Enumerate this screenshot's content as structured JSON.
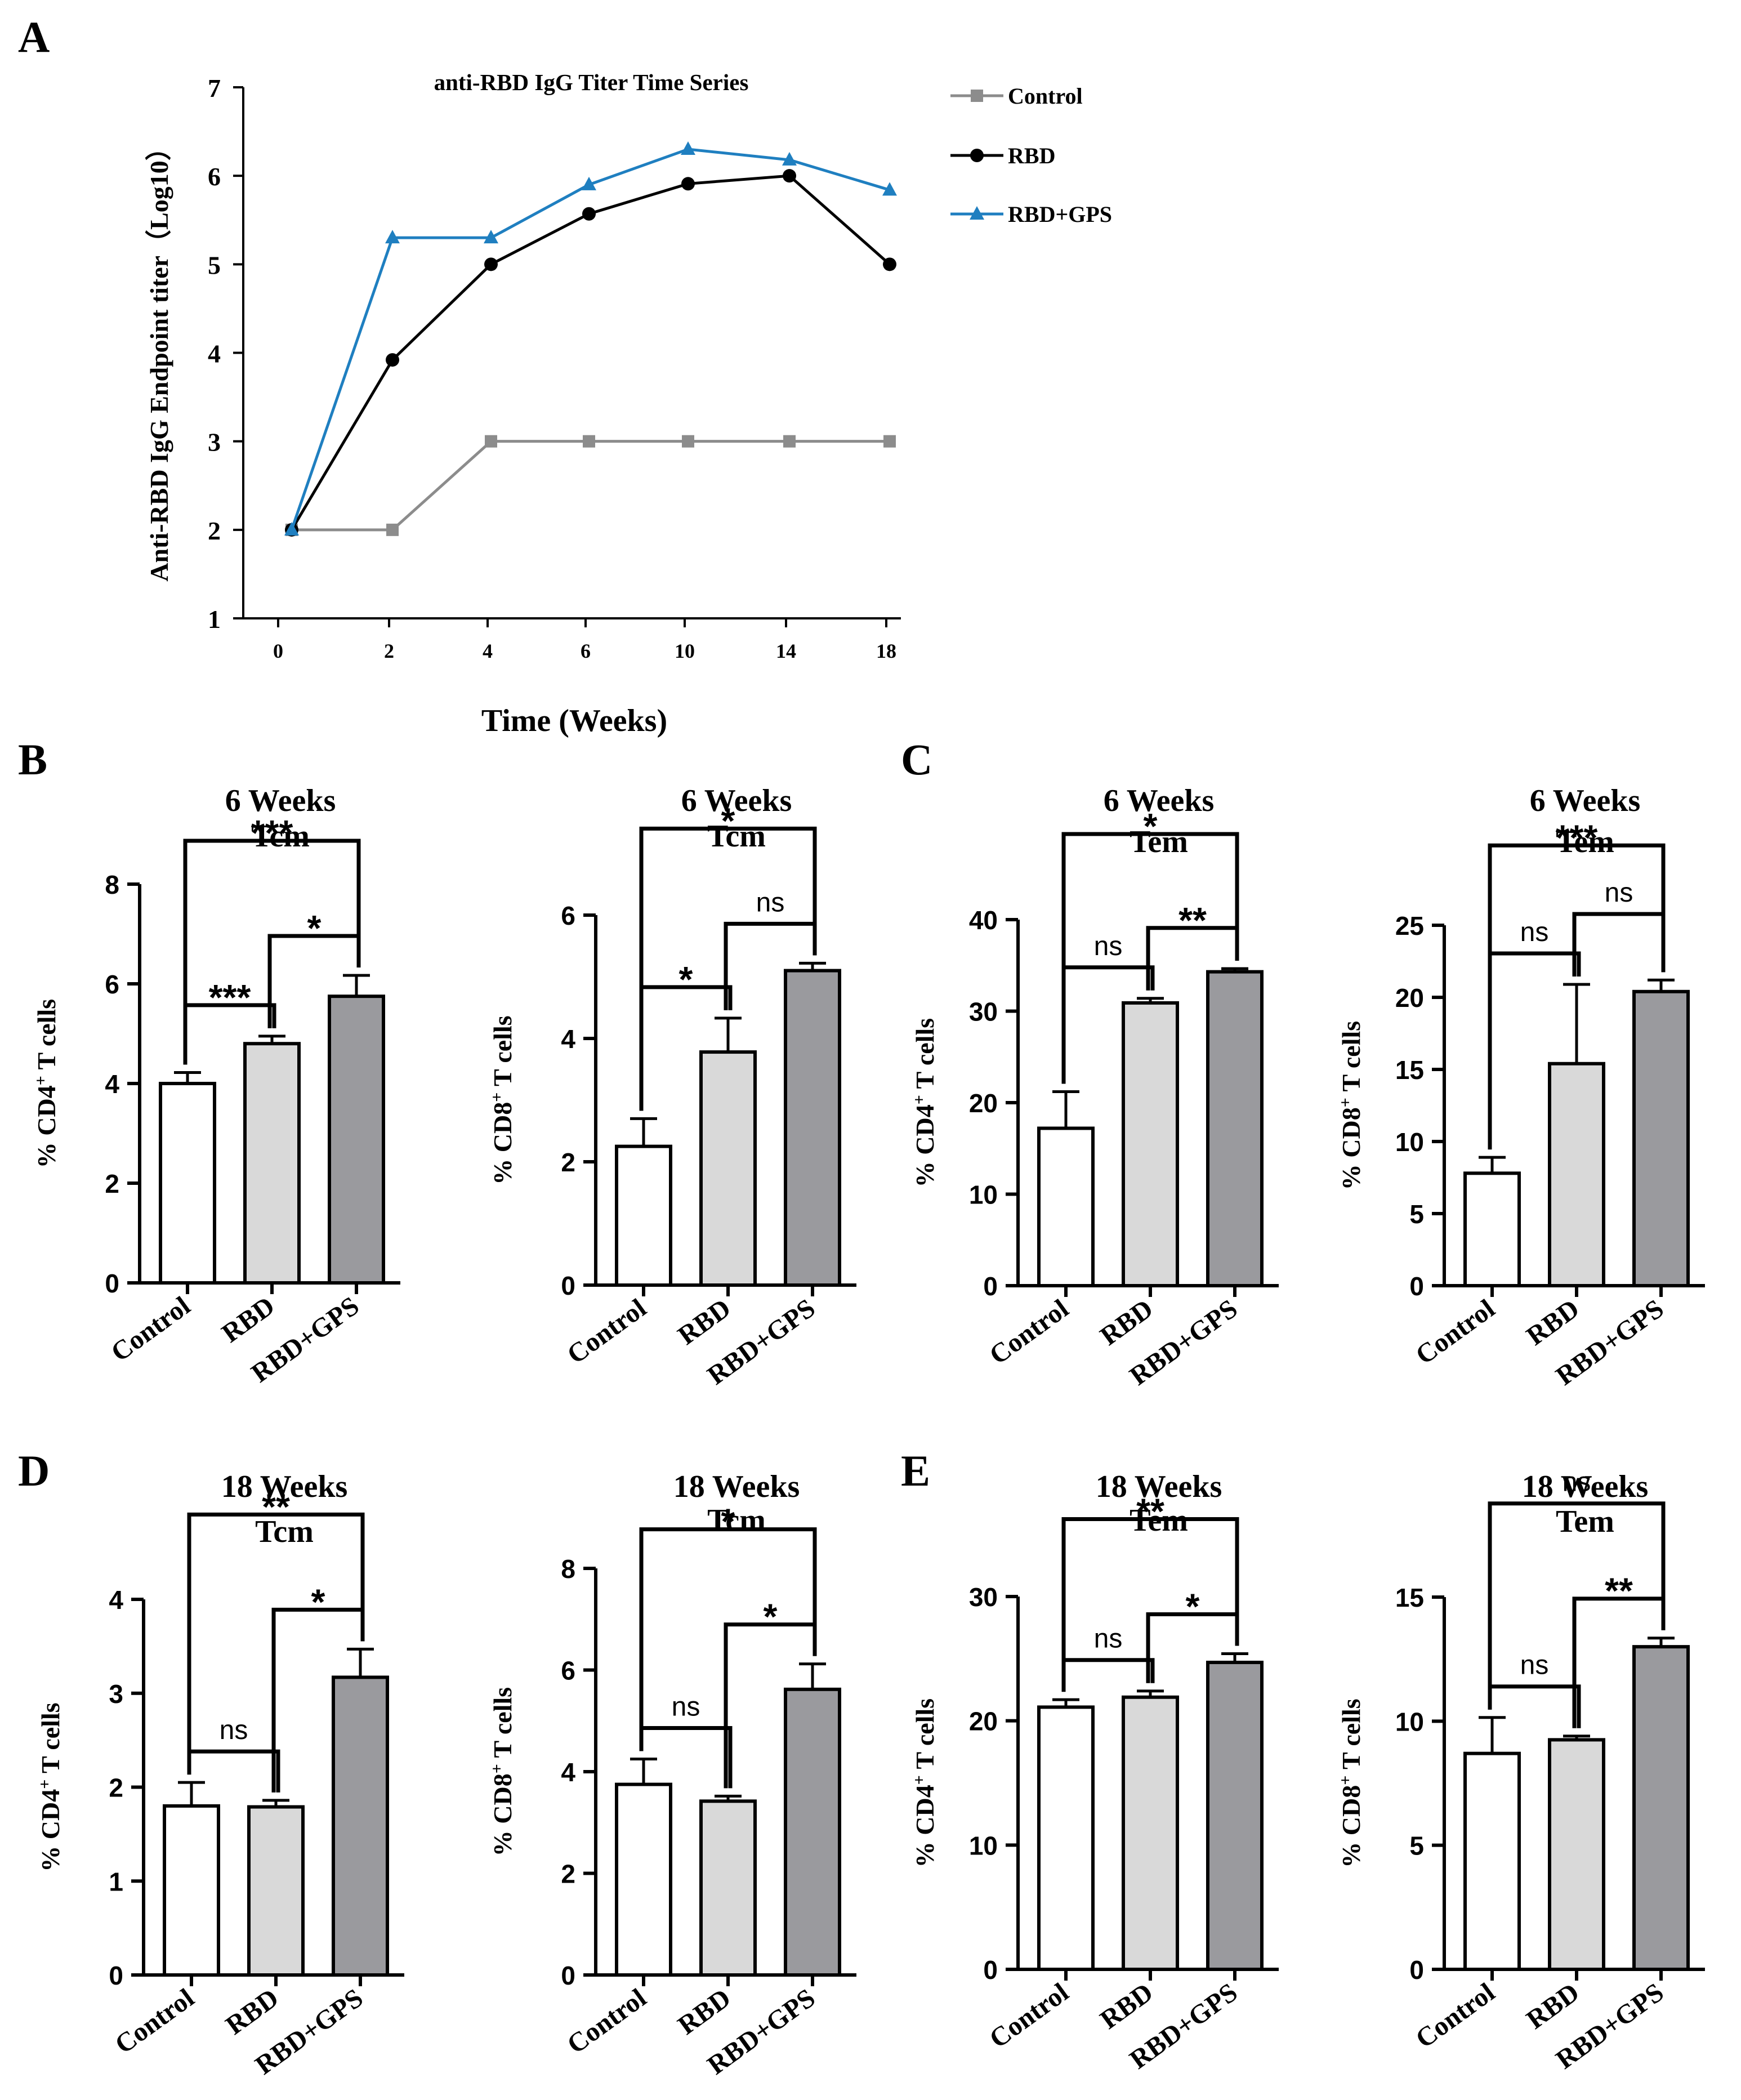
{
  "panel_letters": [
    "A",
    "B",
    "C",
    "D",
    "E"
  ],
  "chart_data": [
    {
      "id": "A",
      "type": "line",
      "title": "anti-RBD IgG Titer Time Series",
      "xlabel": "Time (Weeks)",
      "ylabel": "Anti-RBD IgG Endpoint titer（Log10）",
      "categories": [
        "0",
        "2",
        "4",
        "6",
        "10",
        "14",
        "18"
      ],
      "ylim": [
        1,
        7
      ],
      "yticks": [
        1,
        2,
        3,
        4,
        5,
        6,
        7
      ],
      "series": [
        {
          "name": "Control",
          "marker": "square",
          "color": "#8c8c8c",
          "values": [
            2,
            2,
            3,
            3,
            3,
            3,
            3
          ]
        },
        {
          "name": "RBD",
          "marker": "circle",
          "color": "#000000",
          "values": [
            2,
            3.92,
            5.0,
            5.57,
            5.91,
            6.0,
            5.0
          ]
        },
        {
          "name": "RBD+GPS",
          "marker": "triangle",
          "color": "#1f7fc0",
          "values": [
            2,
            5.3,
            5.3,
            5.9,
            6.3,
            6.18,
            5.84
          ]
        }
      ]
    },
    {
      "id": "B1",
      "type": "bar",
      "title": [
        "6 Weeks",
        "Tcm"
      ],
      "ylabel_prefix": "% CD4",
      "ylabel_sup": "+",
      "ylabel_suffix": " T cells",
      "categories": [
        "Control",
        "RBD",
        "RBD+GPS"
      ],
      "values": [
        4.0,
        4.8,
        5.75
      ],
      "errors": [
        0.22,
        0.15,
        0.42
      ],
      "ylim": [
        0,
        8
      ],
      "yticks": [
        0,
        2,
        4,
        6,
        8
      ],
      "comparisons": [
        {
          "from": 0,
          "to": 1,
          "label": "***"
        },
        {
          "from": 1,
          "to": 2,
          "label": "*"
        },
        {
          "from": 0,
          "to": 2,
          "label": "***"
        }
      ]
    },
    {
      "id": "B2",
      "type": "bar",
      "title": [
        "6 Weeks",
        "Tcm"
      ],
      "ylabel_prefix": "% CD8",
      "ylabel_sup": "+",
      "ylabel_suffix": " T cells",
      "categories": [
        "Control",
        "RBD",
        "RBD+GPS"
      ],
      "values": [
        2.25,
        3.78,
        5.1
      ],
      "errors": [
        0.45,
        0.55,
        0.12
      ],
      "ylim": [
        0,
        6
      ],
      "yticks": [
        0,
        2,
        4,
        6
      ],
      "comparisons": [
        {
          "from": 0,
          "to": 1,
          "label": "*"
        },
        {
          "from": 1,
          "to": 2,
          "label": "ns"
        },
        {
          "from": 0,
          "to": 2,
          "label": "*"
        }
      ]
    },
    {
      "id": "C1",
      "type": "bar",
      "title": [
        "6 Weeks",
        "Tem"
      ],
      "ylabel_prefix": "% CD4",
      "ylabel_sup": "+",
      "ylabel_suffix": " T cells",
      "categories": [
        "Control",
        "RBD",
        "RBD+GPS"
      ],
      "values": [
        17.2,
        30.9,
        34.3
      ],
      "errors": [
        4.0,
        0.5,
        0.35
      ],
      "ylim": [
        0,
        40
      ],
      "yticks": [
        0,
        10,
        20,
        30,
        40
      ],
      "comparisons": [
        {
          "from": 0,
          "to": 1,
          "label": "ns"
        },
        {
          "from": 1,
          "to": 2,
          "label": "**"
        },
        {
          "from": 0,
          "to": 2,
          "label": "*"
        }
      ]
    },
    {
      "id": "C2",
      "type": "bar",
      "title": [
        "6 Weeks",
        "Tem"
      ],
      "ylabel_prefix": "% CD8",
      "ylabel_sup": "+",
      "ylabel_suffix": " T cells",
      "categories": [
        "Control",
        "RBD",
        "RBD+GPS"
      ],
      "values": [
        7.8,
        15.4,
        20.4
      ],
      "errors": [
        1.1,
        5.5,
        0.8
      ],
      "ylim": [
        0,
        25
      ],
      "yticks": [
        0,
        5,
        10,
        15,
        20,
        25
      ],
      "comparisons": [
        {
          "from": 0,
          "to": 1,
          "label": "ns"
        },
        {
          "from": 1,
          "to": 2,
          "label": "ns"
        },
        {
          "from": 0,
          "to": 2,
          "label": "***"
        }
      ]
    },
    {
      "id": "D1",
      "type": "bar",
      "title": [
        "18 Weeks",
        "Tcm"
      ],
      "ylabel_prefix": "% CD4",
      "ylabel_sup": "+",
      "ylabel_suffix": " T cells",
      "categories": [
        "Control",
        "RBD",
        "RBD+GPS"
      ],
      "values": [
        1.8,
        1.79,
        3.17
      ],
      "errors": [
        0.25,
        0.07,
        0.3
      ],
      "ylim": [
        0,
        4
      ],
      "yticks": [
        0,
        1,
        2,
        3,
        4
      ],
      "comparisons": [
        {
          "from": 0,
          "to": 1,
          "label": "ns"
        },
        {
          "from": 1,
          "to": 2,
          "label": "*"
        },
        {
          "from": 0,
          "to": 2,
          "label": "**"
        }
      ]
    },
    {
      "id": "D2",
      "type": "bar",
      "title": [
        "18 Weeks",
        "Tcm"
      ],
      "ylabel_prefix": "% CD8",
      "ylabel_sup": "+",
      "ylabel_suffix": " T cells",
      "categories": [
        "Control",
        "RBD",
        "RBD+GPS"
      ],
      "values": [
        3.75,
        3.42,
        5.62
      ],
      "errors": [
        0.5,
        0.1,
        0.5
      ],
      "ylim": [
        0,
        8
      ],
      "yticks": [
        0,
        2,
        4,
        6,
        8
      ],
      "comparisons": [
        {
          "from": 0,
          "to": 1,
          "label": "ns"
        },
        {
          "from": 1,
          "to": 2,
          "label": "*"
        },
        {
          "from": 0,
          "to": 2,
          "label": "*"
        }
      ]
    },
    {
      "id": "E1",
      "type": "bar",
      "title": [
        "18 Weeks",
        "Tem"
      ],
      "ylabel_prefix": "% CD4",
      "ylabel_sup": "+",
      "ylabel_suffix": " T cells",
      "categories": [
        "Control",
        "RBD",
        "RBD+GPS"
      ],
      "values": [
        21.1,
        21.9,
        24.7
      ],
      "errors": [
        0.6,
        0.5,
        0.7
      ],
      "ylim": [
        0,
        30
      ],
      "yticks": [
        0,
        10,
        20,
        30
      ],
      "comparisons": [
        {
          "from": 0,
          "to": 1,
          "label": "ns"
        },
        {
          "from": 1,
          "to": 2,
          "label": "*"
        },
        {
          "from": 0,
          "to": 2,
          "label": "**"
        }
      ]
    },
    {
      "id": "E2",
      "type": "bar",
      "title": [
        "18 Weeks",
        "Tem"
      ],
      "ylabel_prefix": "% CD8",
      "ylabel_sup": "+",
      "ylabel_suffix": " T cells",
      "categories": [
        "Control",
        "RBD",
        "RBD+GPS"
      ],
      "values": [
        8.7,
        9.25,
        13.0
      ],
      "errors": [
        1.45,
        0.15,
        0.35
      ],
      "ylim": [
        0,
        15
      ],
      "yticks": [
        0,
        5,
        10,
        15
      ],
      "comparisons": [
        {
          "from": 0,
          "to": 1,
          "label": "ns"
        },
        {
          "from": 1,
          "to": 2,
          "label": "**"
        },
        {
          "from": 0,
          "to": 2,
          "label": "ns"
        }
      ]
    }
  ],
  "bar_colors": [
    "#ffffff",
    "#d9d9d9",
    "#9a9a9e"
  ]
}
